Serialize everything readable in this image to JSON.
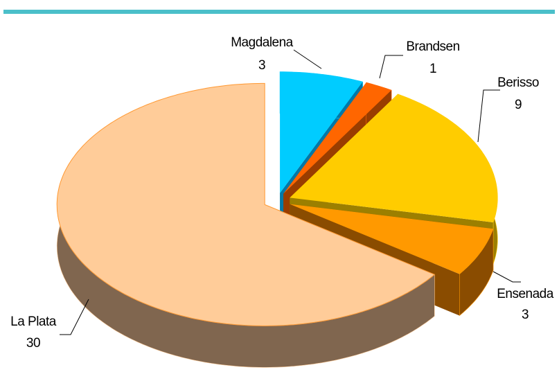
{
  "chart_data": {
    "type": "pie",
    "categories": [
      "Magdalena",
      "Brandsen",
      "Berisso",
      "Ensenada",
      "La Plata"
    ],
    "values": [
      3,
      1,
      9,
      3,
      30
    ],
    "colors": [
      "#00ccff",
      "#ff6600",
      "#ffcc00",
      "#ff9900",
      "#ffcc99"
    ],
    "side_colors": [
      "#0078a8",
      "#993d00",
      "#9c7f00",
      "#8a4c00",
      "#80664f"
    ],
    "exploded": true,
    "three_d": true
  }
}
